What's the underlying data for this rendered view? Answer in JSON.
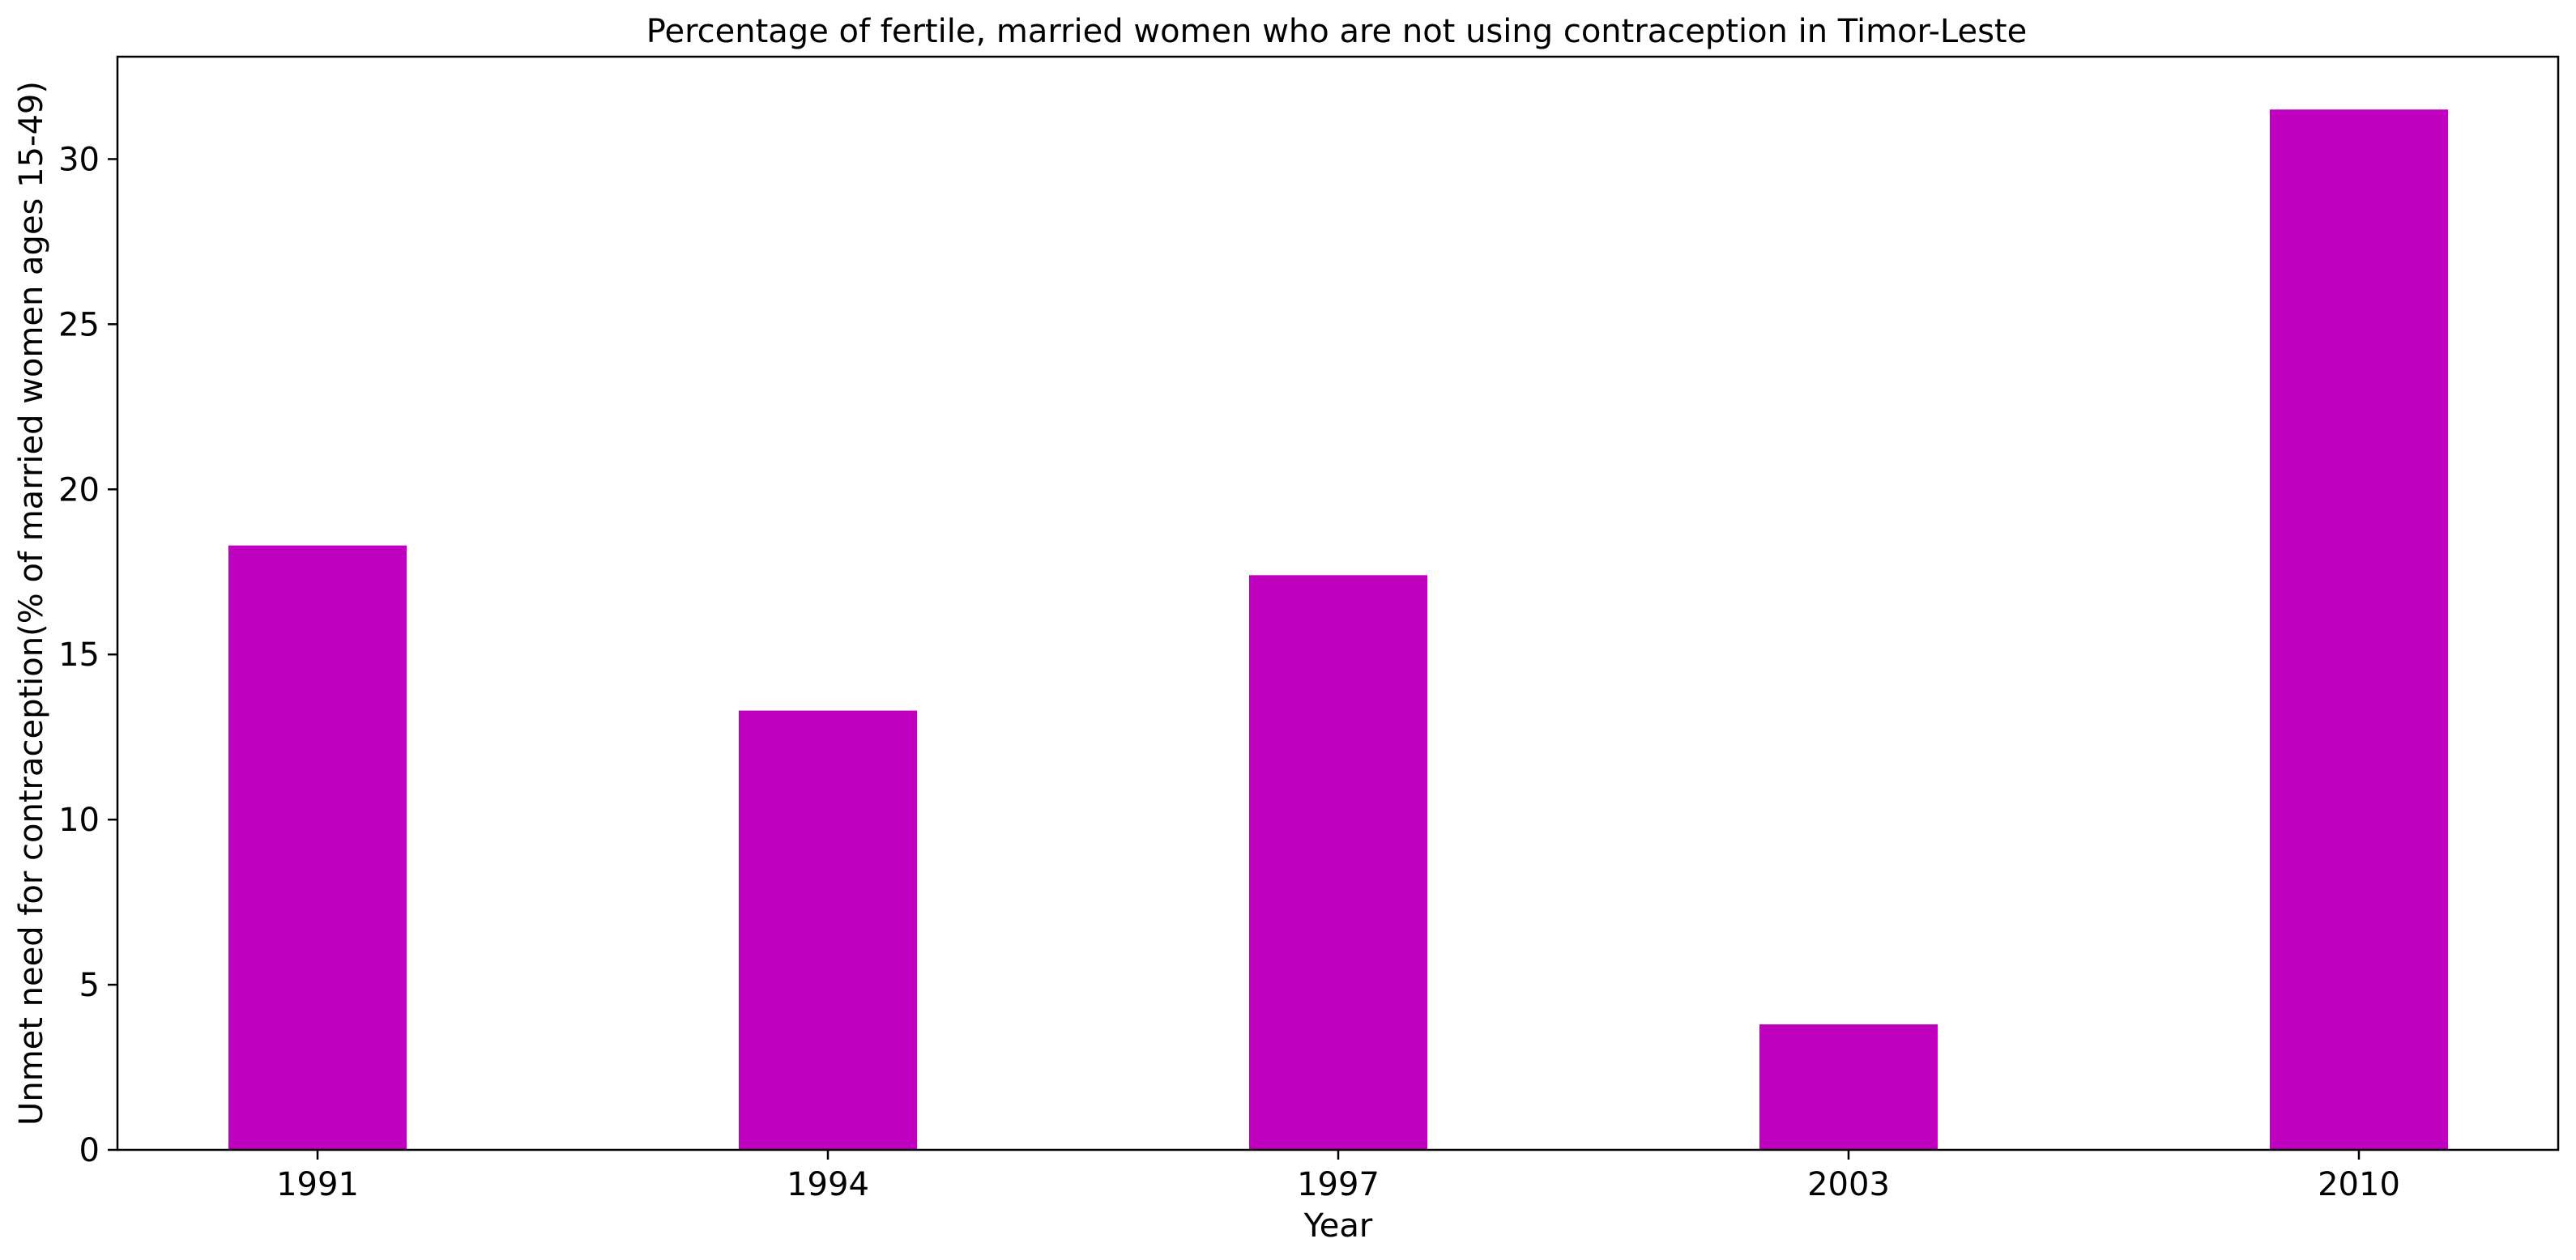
{
  "chart_data": {
    "type": "bar",
    "title": "Percentage of fertile, married women who are not using contraception in Timor-Leste",
    "xlabel": "Year",
    "ylabel": "Unmet need for contraception(% of married women ages 15-49)",
    "categories": [
      "1991",
      "1994",
      "1997",
      "2003",
      "2010"
    ],
    "values": [
      18.3,
      13.3,
      17.4,
      3.8,
      31.5
    ],
    "ylim": [
      0,
      33.1
    ],
    "yticks": [
      0,
      5,
      10,
      15,
      20,
      25,
      30
    ],
    "grid": false,
    "bar_color": "#bf00bf"
  }
}
